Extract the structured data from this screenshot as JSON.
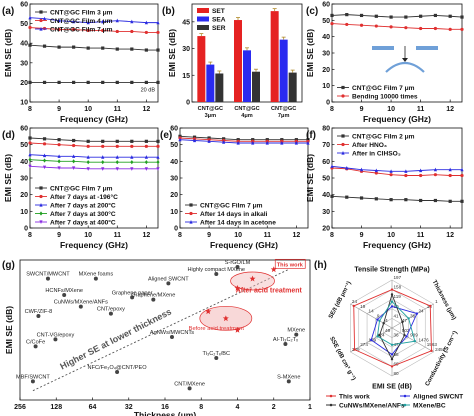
{
  "figure": {
    "panel_labels": [
      "(a)",
      "(b)",
      "(c)",
      "(d)",
      "(e)",
      "(f)",
      "(g)",
      "(h)"
    ]
  },
  "chart_data": [
    {
      "panel": "(a)",
      "type": "line",
      "xlabel": "Frequency (GHz)",
      "ylabel": "EMI SE (dB)",
      "xlim": [
        8,
        12.4
      ],
      "ylim": [
        10,
        60
      ],
      "xticks": [
        "8",
        "9",
        "10",
        "11",
        "12"
      ],
      "yticks": [
        "10",
        "20",
        "30",
        "40",
        "50",
        "60"
      ],
      "legend_position": "top-left",
      "annotation": "20 dB",
      "series": [
        {
          "name": "CNT@GC Film 3 μm",
          "color": "#333333",
          "marker": "square",
          "x": [
            8,
            8.5,
            9,
            9.5,
            10,
            10.5,
            11,
            11.5,
            12,
            12.4
          ],
          "values": [
            39,
            38.5,
            38,
            38,
            37.5,
            37.5,
            37,
            37,
            36.5,
            36.5
          ]
        },
        {
          "name": "CNT@GC Film 4 μm",
          "color": "#e03030",
          "marker": "circle",
          "x": [
            8,
            8.5,
            9,
            9.5,
            10,
            10.5,
            11,
            11.5,
            12,
            12.4
          ],
          "values": [
            48,
            47.5,
            47,
            47,
            46.5,
            46.5,
            46,
            46,
            45.5,
            45.5
          ]
        },
        {
          "name": "CNT@GC Film 7 μm",
          "color": "#2a2ae0",
          "marker": "triangle",
          "x": [
            8,
            8.5,
            9,
            9.5,
            10,
            10.5,
            11,
            11.5,
            12,
            12.4
          ],
          "values": [
            53,
            52.5,
            51.5,
            51,
            50.5,
            51,
            51.5,
            51,
            50.5,
            50.5
          ]
        },
        {
          "name": "",
          "color": "#333333",
          "marker": "square",
          "x": [
            8,
            8.5,
            9,
            9.5,
            10,
            10.5,
            11,
            11.5,
            12,
            12.4
          ],
          "values": [
            20,
            20,
            20,
            20,
            20,
            20,
            20,
            20,
            20,
            20
          ]
        }
      ]
    },
    {
      "panel": "(b)",
      "type": "bar",
      "ylabel": "EMI SE (dB)",
      "ylim": [
        0,
        55
      ],
      "yticks": [
        "0",
        "15",
        "30",
        "45"
      ],
      "categories": [
        "CNT@GC 3μm",
        "CNT@GC 4μm",
        "CNT@GC 7μm"
      ],
      "legend_position": "top-left",
      "series": [
        {
          "name": "SET",
          "color": "#e52222",
          "values": [
            37,
            46,
            51
          ]
        },
        {
          "name": "SEA",
          "color": "#2a2af0",
          "values": [
            21,
            29,
            35
          ]
        },
        {
          "name": "SER",
          "color": "#333333",
          "values": [
            16,
            17,
            16.5
          ]
        }
      ]
    },
    {
      "panel": "(c)",
      "type": "line",
      "xlabel": "Frequency (GHz)",
      "ylabel": "EMI SE (dB)",
      "xlim": [
        8,
        12.4
      ],
      "ylim": [
        0,
        60
      ],
      "xticks": [
        "8",
        "9",
        "10",
        "11",
        "12"
      ],
      "yticks": [
        "0",
        "10",
        "20",
        "30",
        "40",
        "50",
        "60"
      ],
      "legend_position": "bottom-left",
      "series": [
        {
          "name": "CNT@GC Film 7 μm",
          "color": "#333333",
          "marker": "square",
          "x": [
            8,
            8.5,
            9,
            9.5,
            10,
            10.5,
            11,
            11.5,
            12,
            12.4
          ],
          "values": [
            53,
            53.5,
            53,
            52.5,
            52,
            52,
            52.5,
            53,
            52.5,
            52
          ]
        },
        {
          "name": "Bending 10000 times",
          "color": "#e03030",
          "marker": "circle",
          "x": [
            8,
            8.5,
            9,
            9.5,
            10,
            10.5,
            11,
            11.5,
            12,
            12.4
          ],
          "values": [
            48,
            47.5,
            47,
            46.5,
            46,
            45.5,
            45,
            45,
            44.5,
            44.5
          ]
        }
      ]
    },
    {
      "panel": "(d)",
      "type": "line",
      "xlabel": "Frequency (GHz)",
      "ylabel": "EMI SE (dB)",
      "xlim": [
        8,
        12.4
      ],
      "ylim": [
        0,
        60
      ],
      "xticks": [
        "8",
        "9",
        "10",
        "11",
        "12"
      ],
      "yticks": [
        "0",
        "10",
        "20",
        "30",
        "40",
        "50",
        "60"
      ],
      "legend_position": "bottom-left",
      "series": [
        {
          "name": "CNT@GC Film 7 μm",
          "color": "#333333",
          "marker": "square",
          "x": [
            8,
            8.5,
            9,
            9.5,
            10,
            10.5,
            11,
            11.5,
            12,
            12.4
          ],
          "values": [
            54,
            53.5,
            53,
            52.5,
            52,
            52,
            52,
            52,
            52,
            52
          ]
        },
        {
          "name": "After 7 days at -196°C",
          "color": "#e03030",
          "marker": "circle",
          "x": [
            8,
            8.5,
            9,
            9.5,
            10,
            10.5,
            11,
            11.5,
            12,
            12.4
          ],
          "values": [
            51,
            50.5,
            50,
            49.5,
            49,
            49,
            49,
            49,
            49,
            49
          ]
        },
        {
          "name": "After 7 days at 200°C",
          "color": "#2a2ae0",
          "marker": "triangle",
          "x": [
            8,
            8.5,
            9,
            9.5,
            10,
            10.5,
            11,
            11.5,
            12,
            12.4
          ],
          "values": [
            44,
            43.5,
            43,
            43,
            42.5,
            42.5,
            42.5,
            42.5,
            42.5,
            42.5
          ]
        },
        {
          "name": "After 7 days at 300°C",
          "color": "#22a022",
          "marker": "diamond",
          "x": [
            8,
            8.5,
            9,
            9.5,
            10,
            10.5,
            11,
            11.5,
            12,
            12.4
          ],
          "values": [
            41,
            40.5,
            40,
            40,
            39.5,
            39.5,
            39.5,
            39.5,
            39.5,
            39.5
          ]
        },
        {
          "name": "After 7 days at 400°C",
          "color": "#8a2be2",
          "marker": "triangle-down",
          "x": [
            8,
            8.5,
            9,
            9.5,
            10,
            10.5,
            11,
            11.5,
            12,
            12.4
          ],
          "values": [
            37,
            36.5,
            36,
            36,
            35.5,
            35.5,
            35.5,
            35.5,
            35.5,
            35.5
          ]
        }
      ]
    },
    {
      "panel": "(e)",
      "type": "line",
      "xlabel": "Frequency (GHz)",
      "ylabel": "",
      "xlim": [
        8,
        12.4
      ],
      "ylim": [
        0,
        60
      ],
      "xticks": [
        "8",
        "9",
        "10",
        "11",
        "12"
      ],
      "yticks": [
        "0",
        "10",
        "20",
        "30",
        "40",
        "50",
        "60"
      ],
      "legend_position": "bottom-left",
      "series": [
        {
          "name": "CNT@GC Film 7 μm",
          "color": "#333333",
          "marker": "square",
          "x": [
            8,
            8.5,
            9,
            9.5,
            10,
            10.5,
            11,
            11.5,
            12,
            12.4
          ],
          "values": [
            55,
            54.5,
            54,
            53.5,
            53,
            53,
            53,
            53,
            53,
            53
          ]
        },
        {
          "name": "After 14 days in alkali",
          "color": "#e03030",
          "marker": "circle",
          "x": [
            8,
            8.5,
            9,
            9.5,
            10,
            10.5,
            11,
            11.5,
            12,
            12.4
          ],
          "values": [
            54,
            53.5,
            53,
            52.5,
            52,
            52,
            52,
            52,
            52,
            52
          ]
        },
        {
          "name": "After 14 days in acetone",
          "color": "#2a2ae0",
          "marker": "triangle",
          "x": [
            8,
            8.5,
            9,
            9.5,
            10,
            10.5,
            11,
            11.5,
            12,
            12.4
          ],
          "values": [
            53,
            52.5,
            52,
            51.5,
            51,
            51,
            51,
            51,
            51,
            51
          ]
        }
      ]
    },
    {
      "panel": "(f)",
      "type": "line",
      "xlabel": "Frequency (GHz)",
      "ylabel": "EMI SE (dB)",
      "xlim": [
        8,
        12.4
      ],
      "ylim": [
        20,
        80
      ],
      "xticks": [
        "8",
        "9",
        "10",
        "11",
        "12"
      ],
      "yticks": [
        "20",
        "30",
        "40",
        "50",
        "60",
        "70",
        "80"
      ],
      "legend_position": "top-left",
      "series": [
        {
          "name": "CNT@GC Film 2 μm",
          "color": "#333333",
          "marker": "square",
          "x": [
            8,
            8.5,
            9,
            9.5,
            10,
            10.5,
            11,
            11.5,
            12,
            12.4
          ],
          "values": [
            39,
            38.5,
            38,
            37.5,
            37,
            37,
            36.5,
            36.5,
            36,
            36
          ]
        },
        {
          "name": "After HNO₃",
          "color": "#e03030",
          "marker": "circle",
          "x": [
            8,
            8.5,
            9,
            9.5,
            10,
            10.5,
            11,
            11.5,
            12,
            12.4
          ],
          "values": [
            56,
            55.5,
            54,
            53,
            52,
            51.5,
            51.5,
            52,
            51.5,
            51.5
          ]
        },
        {
          "name": "After in ClHSO₃",
          "color": "#2a2ae0",
          "marker": "triangle",
          "x": [
            8,
            8.5,
            9,
            9.5,
            10,
            10.5,
            11,
            11.5,
            12,
            12.4
          ],
          "values": [
            57,
            56,
            55,
            54.5,
            54,
            54,
            54.5,
            55,
            55,
            55
          ]
        }
      ]
    },
    {
      "panel": "(g)",
      "type": "scatter",
      "xlabel": "Thickness (μm)",
      "ylabel": "EMI SE (dB)",
      "x_scale": "log",
      "x_reversed": true,
      "xlim": [
        256,
        1
      ],
      "ylim": [
        20,
        80
      ],
      "xticks": [
        "256",
        "128",
        "64",
        "32",
        "16",
        "8",
        "4",
        "2",
        "1"
      ],
      "yticks": [
        "20",
        "30",
        "40",
        "50",
        "60",
        "70",
        "80"
      ],
      "annotations": [
        "Higher SE at lower thickness",
        "After acid treatment",
        "Before acid treatment",
        "This work"
      ],
      "points": [
        {
          "label": "SWCNT/MWCNT",
          "x": 150,
          "y": 72,
          "color": "#333333"
        },
        {
          "label": "MXene foams",
          "x": 60,
          "y": 72,
          "color": "#333333"
        },
        {
          "label": "HCNFs/MXene",
          "x": 110,
          "y": 65,
          "color": "#333333"
        },
        {
          "label": "Graphene paper",
          "x": 30,
          "y": 64,
          "color": "#333333"
        },
        {
          "label": "CuNWs/MXene/ANFs",
          "x": 80,
          "y": 60,
          "color": "#333333"
        },
        {
          "label": "CNT/epoxy",
          "x": 45,
          "y": 57,
          "color": "#333333"
        },
        {
          "label": "CWF/ZIF-8",
          "x": 180,
          "y": 56,
          "color": "#333333"
        },
        {
          "label": "CNT-VG/epoxy",
          "x": 130,
          "y": 46,
          "color": "#333333"
        },
        {
          "label": "C/CoFe",
          "x": 190,
          "y": 43,
          "color": "#333333"
        },
        {
          "label": "MBF/SWCNT",
          "x": 200,
          "y": 28,
          "color": "#333333"
        },
        {
          "label": "Graphene/MXene",
          "x": 20,
          "y": 63,
          "color": "#333333"
        },
        {
          "label": "Aligned SWCNT",
          "x": 15,
          "y": 70,
          "color": "#333333"
        },
        {
          "label": "S-rGO/LM",
          "x": 4,
          "y": 77,
          "color": "#333333"
        },
        {
          "label": "Highly compact MXene",
          "x": 6,
          "y": 74,
          "color": "#333333"
        },
        {
          "label": "AgNWs/MWCNTs",
          "x": 14,
          "y": 47,
          "color": "#333333"
        },
        {
          "label": "Al-Ti₃C₂Tₓ",
          "x": 1.6,
          "y": 44,
          "color": "#333333"
        },
        {
          "label": "MXene",
          "x": 1.3,
          "y": 48,
          "color": "#333333"
        },
        {
          "label": "Ti₃C₂Tₓ/BC",
          "x": 6,
          "y": 38,
          "color": "#333333"
        },
        {
          "label": "NFC/Fe₃O₄@CNT/PEO",
          "x": 40,
          "y": 32,
          "color": "#333333"
        },
        {
          "label": "CNT/MXene",
          "x": 10,
          "y": 25,
          "color": "#333333"
        },
        {
          "label": "S-MXene",
          "x": 1.5,
          "y": 28,
          "color": "#333333"
        },
        {
          "label": "This work",
          "x": 2,
          "y": 76,
          "color": "#e03030"
        },
        {
          "label": "",
          "x": 3,
          "y": 72,
          "color": "#e03030"
        },
        {
          "label": "",
          "x": 4,
          "y": 68,
          "color": "#e03030"
        },
        {
          "label": "",
          "x": 7,
          "y": 58,
          "color": "#e03030"
        },
        {
          "label": "",
          "x": 5,
          "y": 55,
          "color": "#e03030"
        },
        {
          "label": "",
          "x": 4,
          "y": 50,
          "color": "#e03030"
        }
      ]
    },
    {
      "panel": "(h)",
      "type": "radar",
      "axes": [
        "Tensile Strength (MPa)",
        "Thickness (μm)",
        "Conductivity (S cm⁻¹)",
        "EMI SE (dB)",
        "SSE (dB cm³ g⁻¹)",
        "SE/t (dB μm⁻¹)"
      ],
      "axis_ticks": [
        [
          "197",
          "158",
          "119",
          "80",
          "41"
        ],
        [
          "1",
          "13",
          "24",
          "36",
          "47"
        ],
        [
          "2450",
          "1963",
          "1476",
          "989",
          "502"
        ],
        [
          "80",
          "69",
          "58",
          "47",
          "36"
        ],
        [
          "349",
          "274",
          "199",
          "124",
          "49"
        ],
        [
          "24",
          "19",
          "14",
          "9",
          "4"
        ]
      ],
      "legend_position": "bottom",
      "series": [
        {
          "name": "This work",
          "color": "#e03030",
          "values": [
            0.8,
            0.92,
            0.95,
            0.8,
            0.9,
            0.92
          ]
        },
        {
          "name": "Aligned SWCNT",
          "color": "#2a2ae0",
          "values": [
            0.45,
            0.6,
            0.35,
            0.55,
            0.5,
            0.35
          ]
        },
        {
          "name": "CuNWs/MXene/ANFs",
          "color": "#333333",
          "values": [
            0.7,
            0.25,
            0.3,
            0.65,
            0.3,
            0.2
          ]
        },
        {
          "name": "MXene/BC",
          "color": "#22a0a0",
          "values": [
            0.55,
            0.4,
            0.55,
            0.35,
            0.35,
            0.3
          ]
        }
      ]
    }
  ]
}
